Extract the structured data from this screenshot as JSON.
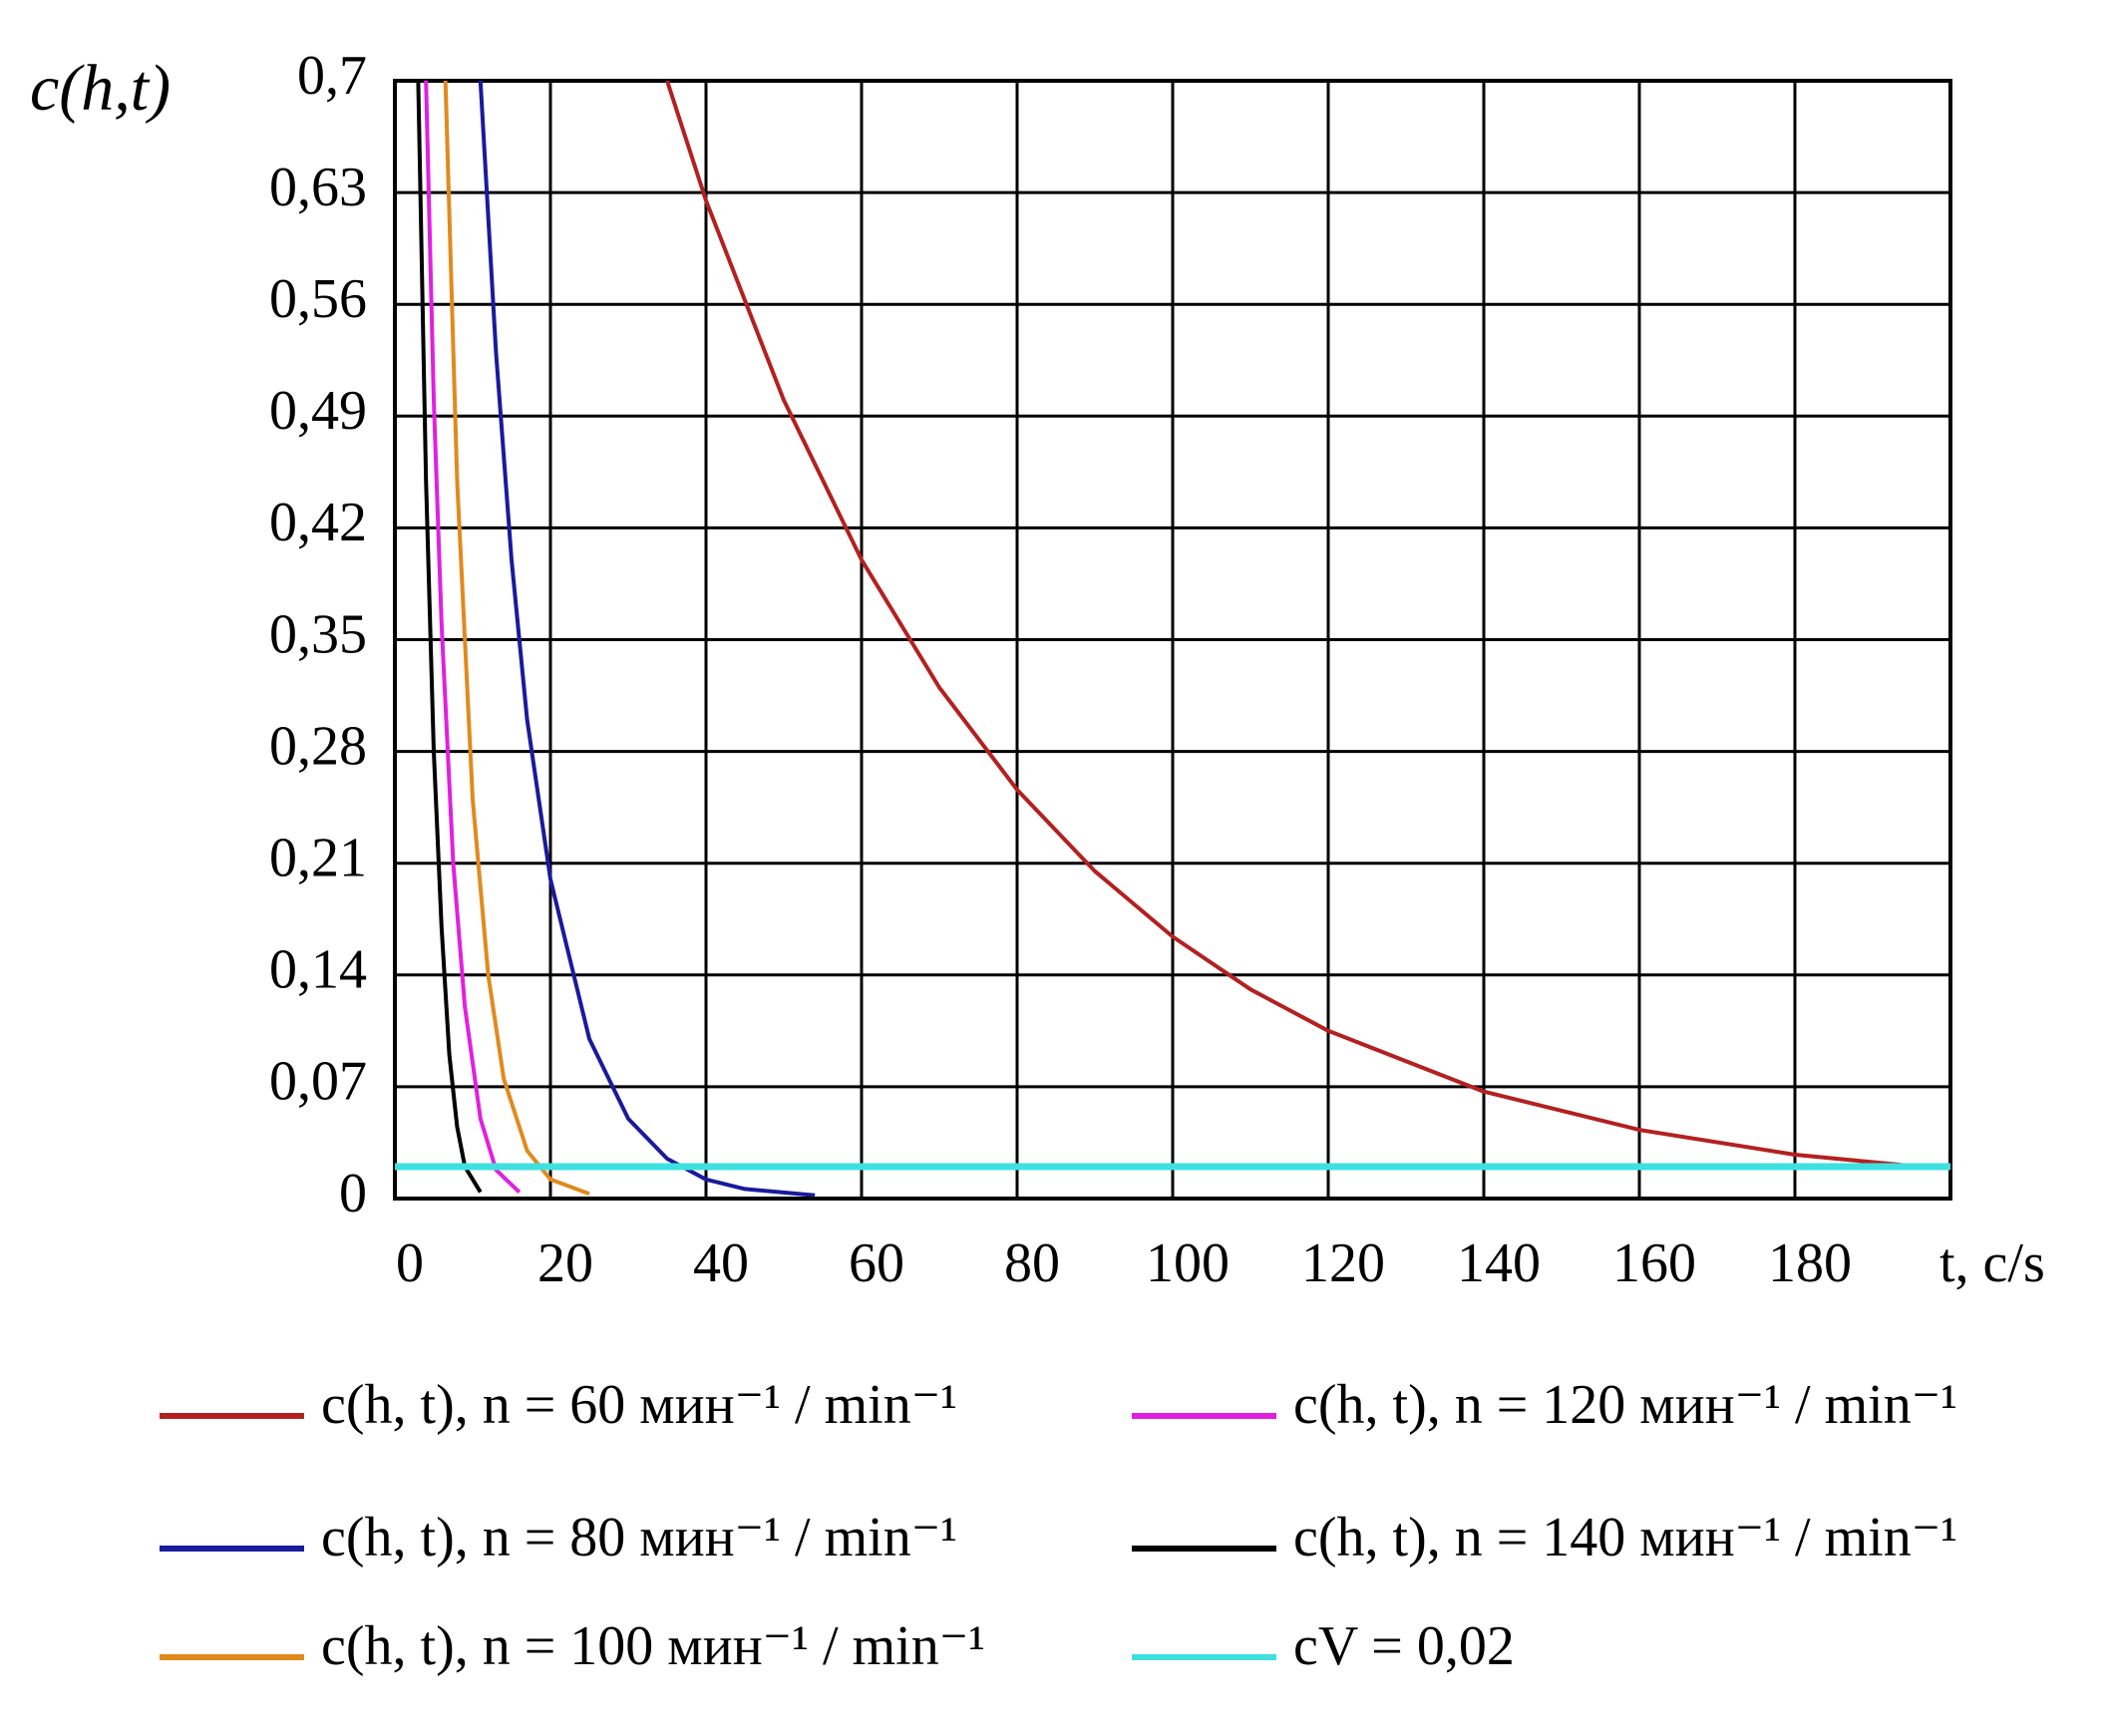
{
  "chart_data": {
    "type": "line",
    "y_label": "c(h,t)",
    "x_label": "t, c/s",
    "xlim": [
      0,
      200
    ],
    "xticks": [
      0,
      20,
      40,
      60,
      80,
      100,
      120,
      140,
      160,
      180
    ],
    "ylim": [
      0,
      0.7
    ],
    "yticks": [
      0,
      {
        "value": 0.07,
        "label": "0,07"
      },
      {
        "value": 0.14,
        "label": "0,14"
      },
      {
        "value": 0.21,
        "label": "0,21"
      },
      {
        "value": 0.28,
        "label": "0,28"
      },
      {
        "value": 0.35,
        "label": "0,35"
      },
      {
        "value": 0.42,
        "label": "0,42"
      },
      {
        "value": 0.49,
        "label": "0,49"
      },
      {
        "value": 0.56,
        "label": "0,56"
      },
      {
        "value": 0.63,
        "label": "0,63"
      },
      {
        "value": 0.7,
        "label": "0,7"
      }
    ],
    "grid": true,
    "series": [
      {
        "name": "c(h, t), n = 60 мин⁻¹ / min⁻¹",
        "color": "#b42020",
        "x": [
          35,
          40,
          50,
          60,
          70,
          80,
          90,
          100,
          110,
          120,
          140,
          160,
          180,
          196
        ],
        "values": [
          0.7,
          0.625,
          0.5,
          0.4,
          0.32,
          0.256,
          0.205,
          0.164,
          0.131,
          0.105,
          0.067,
          0.043,
          0.0275,
          0.02
        ]
      },
      {
        "name": "c(h, t), n = 80 мин⁻¹ / min⁻¹",
        "color": "#1a1a9c",
        "x": [
          11,
          13,
          15,
          17,
          20,
          25,
          30,
          35,
          40,
          45,
          54
        ],
        "values": [
          0.7,
          0.53,
          0.4,
          0.3,
          0.2,
          0.1,
          0.05,
          0.025,
          0.012,
          0.006,
          0.002
        ]
      },
      {
        "name": "c(h, t), n = 100 мин⁻¹ / min⁻¹",
        "color": "#e08a1e",
        "x": [
          6.5,
          8,
          10,
          12,
          14,
          17,
          20,
          25
        ],
        "values": [
          0.7,
          0.45,
          0.25,
          0.14,
          0.075,
          0.03,
          0.012,
          0.003
        ]
      },
      {
        "name": "c(h, t), n = 120 мин⁻¹ / min⁻¹",
        "color": "#e020e0",
        "x": [
          4,
          5,
          6,
          7.5,
          9,
          11,
          13,
          16
        ],
        "values": [
          0.7,
          0.5,
          0.36,
          0.21,
          0.12,
          0.05,
          0.018,
          0.004
        ]
      },
      {
        "name": "c(h, t), n = 140 мин⁻¹ / min⁻¹",
        "color": "#000000",
        "x": [
          3,
          4,
          5,
          6,
          7,
          8,
          9,
          11
        ],
        "values": [
          0.7,
          0.45,
          0.28,
          0.17,
          0.09,
          0.045,
          0.02,
          0.004
        ]
      },
      {
        "name": "cV = 0,02",
        "color": "#40e0e0",
        "x": [
          0,
          200
        ],
        "values": [
          0.02,
          0.02
        ]
      }
    ]
  }
}
